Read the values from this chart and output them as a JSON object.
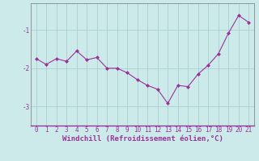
{
  "x": [
    0,
    1,
    2,
    3,
    4,
    5,
    6,
    7,
    8,
    9,
    10,
    11,
    12,
    13,
    14,
    15,
    16,
    17,
    18,
    19,
    20,
    21
  ],
  "y": [
    -1.75,
    -1.9,
    -1.75,
    -1.82,
    -1.55,
    -1.78,
    -1.72,
    -2.0,
    -2.0,
    -2.12,
    -2.3,
    -2.45,
    -2.55,
    -2.92,
    -2.45,
    -2.48,
    -2.15,
    -1.92,
    -1.62,
    -1.08,
    -0.62,
    -0.8
  ],
  "line_color": "#993399",
  "marker": "D",
  "marker_size": 2.0,
  "bg_color": "#cdeaea",
  "grid_color": "#aacece",
  "xlabel": "Windchill (Refroidissement éolien,°C)",
  "xlabel_fontsize": 6.5,
  "tick_fontsize": 5.5,
  "yticks": [
    -3,
    -2,
    -1
  ],
  "ylim": [
    -3.5,
    -0.3
  ],
  "xlim": [
    -0.5,
    21.5
  ],
  "spine_color": "#888888",
  "line_width": 0.8
}
